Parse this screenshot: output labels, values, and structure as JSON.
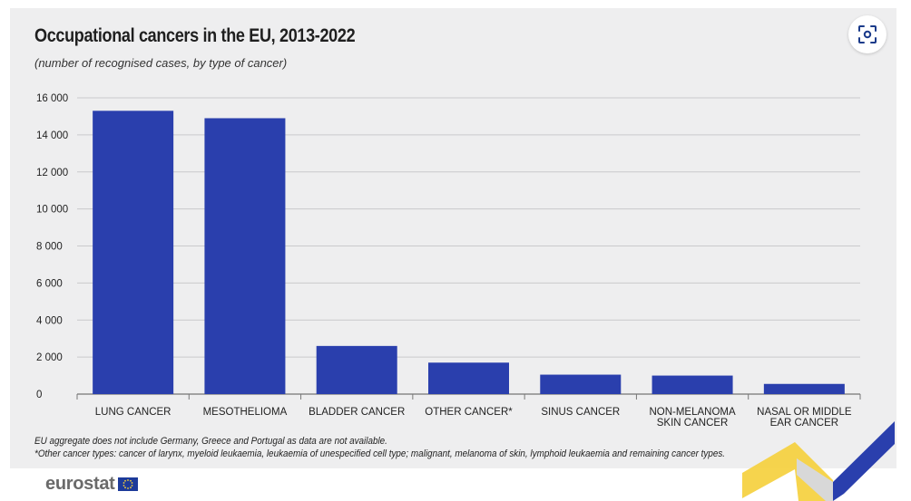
{
  "chart_data": {
    "type": "bar",
    "title": "Occupational cancers in the EU, 2013-2022",
    "subtitle": "(number of recognised cases, by type of cancer)",
    "categories": [
      "LUNG CANCER",
      "MESOTHELIOMA",
      "BLADDER CANCER",
      "OTHER CANCER*",
      "SINUS CANCER",
      "NON-MELANOMA SKIN CANCER",
      "NASAL OR MIDDLE EAR CANCER"
    ],
    "category_lines": [
      [
        "LUNG CANCER"
      ],
      [
        "MESOTHELIOMA"
      ],
      [
        "BLADDER CANCER"
      ],
      [
        "OTHER CANCER*"
      ],
      [
        "SINUS CANCER"
      ],
      [
        "NON-MELANOMA",
        "SKIN CANCER"
      ],
      [
        "NASAL OR MIDDLE",
        "EAR CANCER"
      ]
    ],
    "values": [
      15300,
      14900,
      2600,
      1700,
      1050,
      1000,
      550
    ],
    "ylim": [
      0,
      16000
    ],
    "yticks": [
      0,
      2000,
      4000,
      6000,
      8000,
      10000,
      12000,
      14000,
      16000
    ],
    "ytick_labels": [
      "0",
      "2 000",
      "4 000",
      "6 000",
      "8 000",
      "10 000",
      "12 000",
      "14 000",
      "16 000"
    ],
    "grid": true,
    "bar_color": "#2a3fad",
    "xlabel": "",
    "ylabel": ""
  },
  "footnotes": {
    "line1": "EU aggregate does not include Germany, Greece and Portugal as data are not available.",
    "line2": "*Other cancer types: cancer of larynx, myeloid leukaemia, leukaemia of unespecified cell type; malignant, melanoma of skin, lymphoid leukaemia and remaining cancer types."
  },
  "brand": {
    "name": "eurostat"
  },
  "icons": {
    "capture": "screen-capture-icon",
    "flag": "eu-flag-icon"
  }
}
